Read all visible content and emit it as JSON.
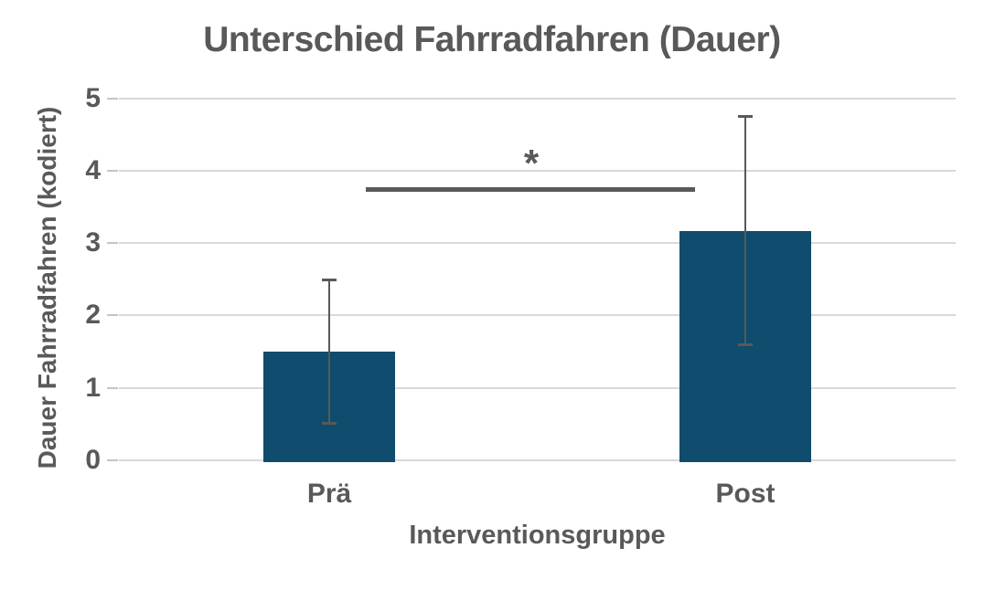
{
  "chart_data": {
    "type": "bar",
    "title": "Unterschied Fahrradfahren (Dauer)",
    "xlabel": "Interventionsgruppe",
    "ylabel": "Dauer Fahrradfahren (kodiert)",
    "categories": [
      "Prä",
      "Post"
    ],
    "values": [
      1.5,
      3.17
    ],
    "error_bars": [
      {
        "low": 0.5,
        "high": 2.5
      },
      {
        "low": 1.59,
        "high": 4.76
      }
    ],
    "yticks": [
      0,
      1,
      2,
      3,
      4,
      5
    ],
    "ylim": [
      0,
      5
    ],
    "grid": "horizontal",
    "legend": "none",
    "annotations": [
      {
        "type": "significance-bar",
        "label": "*",
        "y_value": 3.73,
        "between": [
          "Prä",
          "Post"
        ]
      }
    ],
    "colors": {
      "bar": "#0f4c6e",
      "text": "#595959",
      "grid": "#d9d9d9",
      "tick": "#c4c4c4",
      "error_bar": "#595959",
      "significance": "#595959",
      "background": "#ffffff"
    }
  }
}
